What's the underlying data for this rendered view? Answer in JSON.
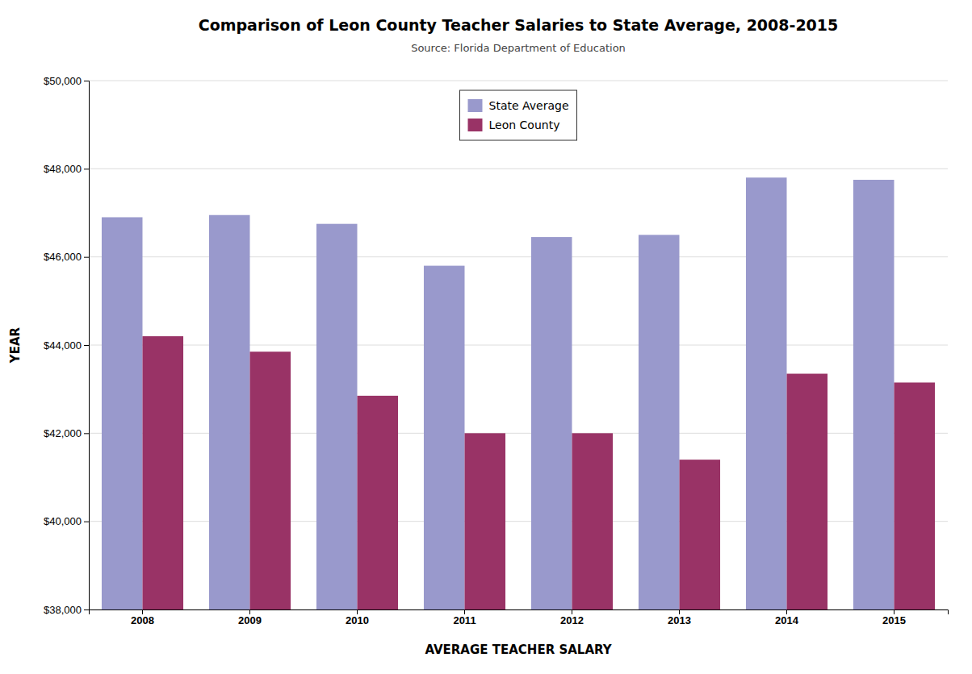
{
  "chart_data": {
    "type": "bar",
    "title": "Comparison of Leon County Teacher Salaries to State Average, 2008-2015",
    "subtitle": "Source: Florida Department of Education",
    "xlabel": "AVERAGE TEACHER SALARY",
    "ylabel": "YEAR",
    "categories": [
      "2008",
      "2009",
      "2010",
      "2011",
      "2012",
      "2013",
      "2014",
      "2015"
    ],
    "series": [
      {
        "name": "State Average",
        "color": "#9999CC",
        "values": [
          46900,
          46950,
          46750,
          45800,
          46450,
          46500,
          47800,
          47750
        ]
      },
      {
        "name": "Leon County",
        "color": "#993366",
        "values": [
          44200,
          43850,
          42850,
          42000,
          42000,
          41400,
          43350,
          43150
        ]
      }
    ],
    "ylim": [
      38000,
      50000
    ],
    "yticks": [
      {
        "value": 38000,
        "label": "$38,000"
      },
      {
        "value": 40000,
        "label": "$40,000"
      },
      {
        "value": 42000,
        "label": "$42,000"
      },
      {
        "value": 44000,
        "label": "$44,000"
      },
      {
        "value": 46000,
        "label": "$46,000"
      },
      {
        "value": 48000,
        "label": "$48,000"
      },
      {
        "value": 50000,
        "label": "$50,000"
      }
    ],
    "grid": true,
    "legend": "upper center"
  }
}
